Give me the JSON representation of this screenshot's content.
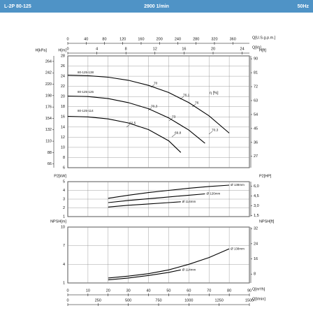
{
  "header": {
    "model": "L-2P 80-125",
    "speed": "2900 1/min",
    "frequency": "50Hz"
  },
  "chart_data": [
    {
      "type": "line",
      "xlim": [
        0,
        90
      ],
      "ylim": [
        6,
        28
      ],
      "ylabel": "H[m]",
      "yticks": [
        6,
        8,
        10,
        12,
        14,
        16,
        18,
        20,
        22,
        24,
        26,
        28
      ],
      "y_axes": [
        {
          "label": "H[kPa]",
          "ylim": [
            58.86,
            274.68
          ],
          "yticks": [
            66,
            88,
            110,
            132,
            154,
            176,
            198,
            220,
            242,
            264
          ]
        },
        {
          "label": "H[ft]",
          "ylim": [
            19.69,
            91.86
          ],
          "yticks": [
            27,
            36,
            45,
            54,
            63,
            72,
            81,
            90
          ]
        }
      ],
      "x_axes": [
        {
          "label": "Q[U.S.g.p.m.]",
          "xlim": [
            0,
            396.26
          ],
          "xticks": [
            0,
            40,
            80,
            120,
            160,
            200,
            240,
            280,
            320,
            360
          ]
        },
        {
          "label": "Q[l/s]",
          "xlim": [
            0,
            25
          ],
          "xticks": [
            0,
            4,
            8,
            12,
            16,
            20,
            24
          ]
        }
      ],
      "series": [
        {
          "name": "80-125-138",
          "color": "#000000",
          "x": [
            0,
            10,
            20,
            30,
            40,
            50,
            60,
            70,
            80
          ],
          "values": [
            24.2,
            24.1,
            23.8,
            23.2,
            22.2,
            20.8,
            18.8,
            16.2,
            12.8
          ]
        },
        {
          "name": "80-125-126",
          "color": "#000000",
          "x": [
            0,
            10,
            20,
            30,
            40,
            50,
            60,
            68
          ],
          "values": [
            20.1,
            20,
            19.6,
            18.8,
            17.6,
            15.8,
            13.4,
            10.8
          ]
        },
        {
          "name": "80-125-114",
          "color": "#000000",
          "x": [
            0,
            10,
            20,
            30,
            40,
            50,
            56
          ],
          "values": [
            16.1,
            16,
            15.6,
            14.8,
            13.5,
            11.3,
            9
          ]
        }
      ],
      "efficiency_label": "η [%]",
      "annotations": [
        "70",
        "76,1",
        "76",
        "70,3",
        "73",
        "70,3",
        "62,5",
        "69,8"
      ]
    },
    {
      "type": "line",
      "xlim": [
        0,
        90
      ],
      "ylim": [
        1,
        5
      ],
      "ylabel": "P2[kW]",
      "yticks": [
        1,
        2,
        3,
        4,
        5
      ],
      "y_axes": [
        {
          "label": "P2[HP]",
          "ylim": [
            1.341,
            6.705
          ],
          "yticks": [
            {
              "value": 1.5,
              "label": "1,5"
            },
            {
              "value": 3.0,
              "label": "3,0"
            },
            {
              "value": 4.5,
              "label": "4,5"
            },
            {
              "value": 6.0,
              "label": "6,0"
            }
          ]
        }
      ],
      "series": [
        {
          "name": "Ø 138mm",
          "color": "#000000",
          "x": [
            20,
            30,
            40,
            50,
            60,
            70,
            80
          ],
          "values": [
            3.1,
            3.45,
            3.75,
            4.0,
            4.25,
            4.45,
            4.6
          ]
        },
        {
          "name": "Ø 126mm",
          "color": "#000000",
          "x": [
            20,
            30,
            40,
            50,
            60,
            68
          ],
          "values": [
            2.6,
            2.85,
            3.05,
            3.25,
            3.45,
            3.6
          ]
        },
        {
          "name": "Ø 114mm",
          "color": "#000000",
          "x": [
            20,
            30,
            40,
            50,
            56
          ],
          "values": [
            2.1,
            2.3,
            2.45,
            2.6,
            2.7
          ]
        }
      ]
    },
    {
      "type": "line",
      "xlim": [
        0,
        90
      ],
      "ylim": [
        1,
        10
      ],
      "ylabel": "NPSH[m]",
      "yticks": [
        1,
        4,
        7,
        10
      ],
      "xlabel": "Q[m³/h]",
      "xticks": [
        0,
        10,
        20,
        30,
        40,
        50,
        60,
        70,
        80,
        90
      ],
      "y_axes": [
        {
          "label": "NPSH[ft]",
          "ylim": [
            3.28,
            32.81
          ],
          "yticks": [
            8,
            16,
            24,
            32
          ]
        }
      ],
      "x_axes": [
        {
          "label": "Q[l/min]",
          "xlim": [
            0,
            1500
          ],
          "xticks": [
            0,
            250,
            500,
            750,
            1000,
            1250,
            1500
          ]
        }
      ],
      "series": [
        {
          "name": "Ø 138mm",
          "color": "#000000",
          "x": [
            20,
            30,
            40,
            50,
            60,
            70,
            80
          ],
          "values": [
            1.8,
            2.1,
            2.5,
            3.1,
            4.0,
            5.1,
            6.5
          ]
        },
        {
          "name": "Ø 114mm",
          "color": "#000000",
          "x": [
            20,
            30,
            40,
            50,
            56
          ],
          "values": [
            1.5,
            1.8,
            2.2,
            2.7,
            3.1
          ]
        }
      ]
    }
  ]
}
